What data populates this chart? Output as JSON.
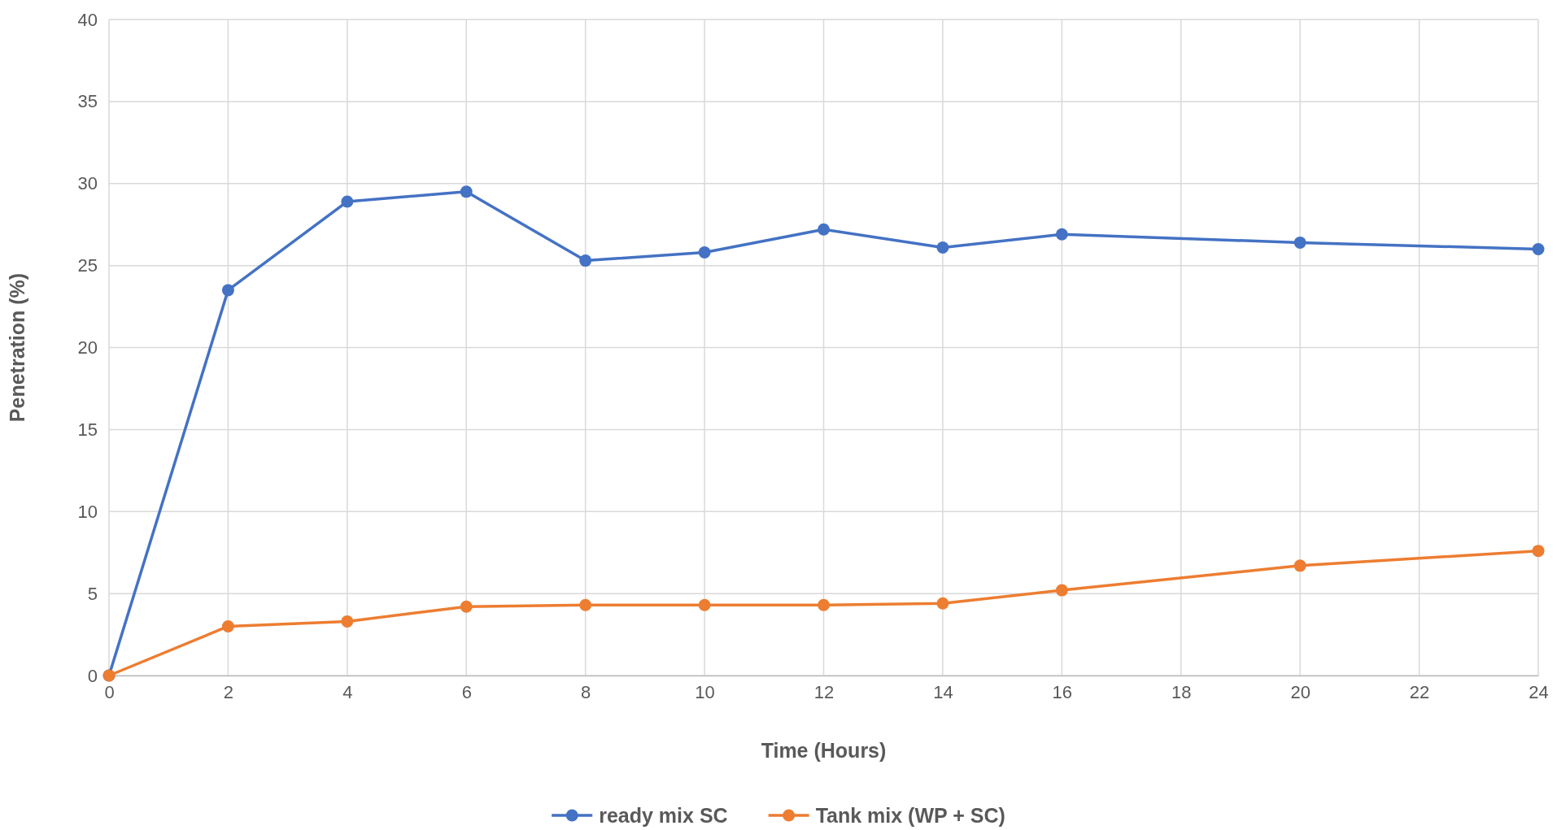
{
  "chart_data": {
    "type": "line",
    "xlabel": "Time (Hours)",
    "ylabel": "Penetration (%)",
    "x": [
      0,
      2,
      4,
      6,
      8,
      10,
      12,
      14,
      16,
      20,
      24
    ],
    "series": [
      {
        "name": "ready mix SC",
        "color": "#4472c4",
        "values": [
          0,
          23.5,
          28.9,
          29.5,
          25.3,
          25.8,
          27.2,
          26.1,
          26.9,
          26.4,
          26.0
        ]
      },
      {
        "name": "Tank mix (WP + SC)",
        "color": "#ed7d31",
        "values": [
          0,
          3.0,
          3.3,
          4.2,
          4.3,
          4.3,
          4.3,
          4.4,
          5.2,
          6.7,
          7.6
        ]
      }
    ],
    "xlim": [
      0,
      24
    ],
    "xticks": [
      0,
      2,
      4,
      6,
      8,
      10,
      12,
      14,
      16,
      18,
      20,
      22,
      24
    ],
    "ylim": [
      0,
      40
    ],
    "yticks": [
      0,
      5,
      10,
      15,
      20,
      25,
      30,
      35,
      40
    ],
    "grid": true,
    "legend": "bottom",
    "marker": "circle",
    "line_style": "solid"
  }
}
